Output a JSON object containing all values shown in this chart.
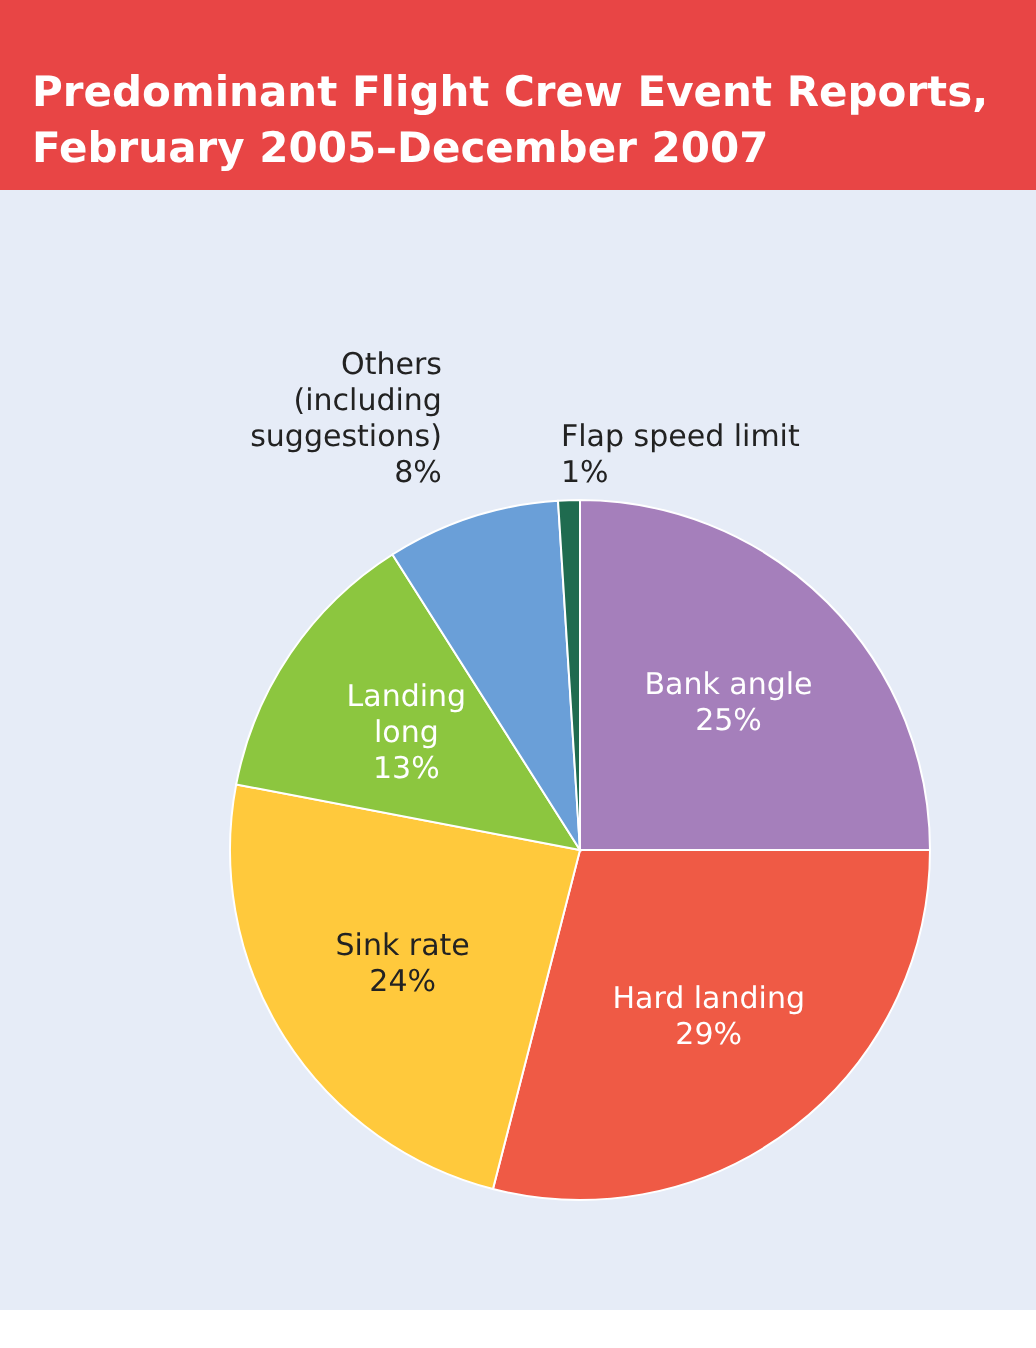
{
  "chart_data": {
    "type": "pie",
    "title": "Predominant Flight Crew Event Reports, February 2005–December 2007",
    "categories": [
      "Bank angle",
      "Hard landing",
      "Sink rate",
      "Landing long",
      "Others (including suggestions)",
      "Flap speed limit"
    ],
    "values": [
      25,
      29,
      24,
      13,
      8,
      1
    ],
    "colors": [
      "#a57fbb",
      "#ef5a45",
      "#ffc93c",
      "#8cc63f",
      "#6a9fd8",
      "#1f6b4f"
    ],
    "value_labels": [
      "25%",
      "29%",
      "24%",
      "13%",
      "8%",
      "1%"
    ],
    "legend": false
  }
}
